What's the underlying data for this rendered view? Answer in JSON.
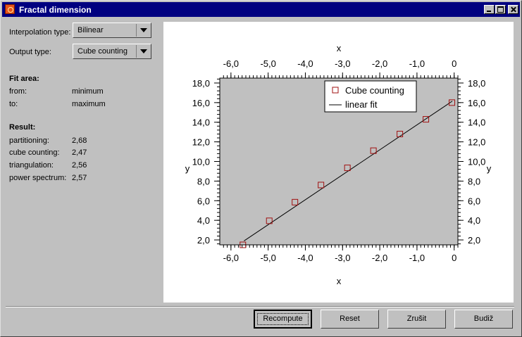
{
  "window": {
    "title": "Fractal dimension",
    "icon": "fractal-app-icon"
  },
  "controls": {
    "interpolation_label": "Interpolation type:",
    "interpolation_value": "Bilinear",
    "output_label": "Output type:",
    "output_value": "Cube counting"
  },
  "fit_area": {
    "heading": "Fit area:",
    "from_label": "from:",
    "from_value": "minimum",
    "to_label": "to:",
    "to_value": "maximum"
  },
  "result": {
    "heading": "Result:",
    "rows": [
      {
        "label": "partitioning:",
        "value": "2,68"
      },
      {
        "label": "cube counting:",
        "value": "2,47"
      },
      {
        "label": "triangulation:",
        "value": "2,56"
      },
      {
        "label": "power spectrum:",
        "value": "2,57"
      }
    ]
  },
  "buttons": {
    "recompute": "Recompute",
    "reset": "Reset",
    "cancel": "Zrušit",
    "ok": "Budiž"
  },
  "chart_data": {
    "type": "scatter",
    "xlabel": "x",
    "ylabel": "y",
    "xlim": [
      -6.3,
      0.1
    ],
    "ylim": [
      1.5,
      18.5
    ],
    "x_ticks": [
      -6.0,
      -5.0,
      -4.0,
      -3.0,
      -2.0,
      -1.0,
      0
    ],
    "x_tick_labels": [
      "-6,0",
      "-5,0",
      "-4,0",
      "-3,0",
      "-2,0",
      "-1,0",
      "0"
    ],
    "y_ticks": [
      2.0,
      4.0,
      6.0,
      8.0,
      10.0,
      12.0,
      14.0,
      16.0,
      18.0
    ],
    "y_tick_labels": [
      "2,0",
      "4,0",
      "6,0",
      "8,0",
      "10,0",
      "12,0",
      "14,0",
      "16,0",
      "18,0"
    ],
    "series": [
      {
        "name": "Cube counting",
        "kind": "markers",
        "x": [
          -5.68,
          -4.97,
          -4.28,
          -3.58,
          -2.87,
          -2.17,
          -1.46,
          -0.76,
          -0.06
        ],
        "y": [
          1.5,
          3.95,
          5.85,
          7.6,
          9.35,
          11.1,
          12.8,
          14.3,
          16.0
        ]
      },
      {
        "name": "linear fit",
        "kind": "line",
        "x": [
          -5.65,
          -0.05
        ],
        "y": [
          1.9,
          16.15
        ]
      }
    ],
    "legend": "top-right",
    "plot_color": "#c0c0c0",
    "marker_color": "#a01010"
  }
}
